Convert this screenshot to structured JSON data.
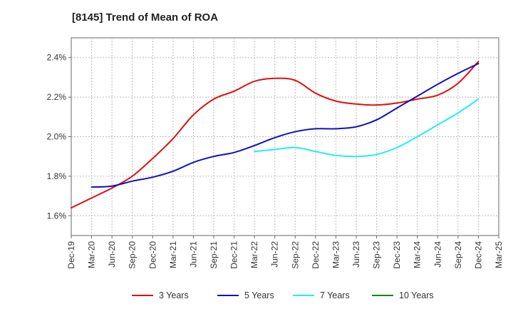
{
  "chart_data": {
    "type": "line",
    "title": "[8145]  Trend of Mean of ROA",
    "xlabel": "",
    "ylabel": "",
    "x_ticks": [
      "Dec-19",
      "Mar-20",
      "Jun-20",
      "Sep-20",
      "Dec-20",
      "Mar-21",
      "Jun-21",
      "Sep-21",
      "Dec-21",
      "Mar-22",
      "Jun-22",
      "Sep-22",
      "Dec-22",
      "Mar-23",
      "Jun-23",
      "Sep-23",
      "Dec-23",
      "Mar-24",
      "Jun-24",
      "Sep-24",
      "Dec-24",
      "Mar-25"
    ],
    "y_ticks": [
      "1.6%",
      "1.8%",
      "2.0%",
      "2.2%",
      "2.4%"
    ],
    "y_tick_values": [
      1.6,
      1.8,
      2.0,
      2.2,
      2.4
    ],
    "ylim": [
      1.5,
      2.5
    ],
    "grid": true,
    "legend_position": "bottom",
    "series": [
      {
        "name": "3 Years",
        "color": "#dd1111",
        "x": [
          "Dec-19",
          "Mar-20",
          "Jun-20",
          "Sep-20",
          "Dec-20",
          "Mar-21",
          "Jun-21",
          "Sep-21",
          "Dec-21",
          "Mar-22",
          "Jun-22",
          "Sep-22",
          "Dec-22",
          "Mar-23",
          "Jun-23",
          "Sep-23",
          "Dec-23",
          "Mar-24",
          "Jun-24",
          "Sep-24",
          "Dec-24"
        ],
        "values": [
          1.64,
          1.69,
          1.74,
          1.8,
          1.89,
          1.99,
          2.11,
          2.19,
          2.23,
          2.28,
          2.295,
          2.285,
          2.22,
          2.18,
          2.165,
          2.16,
          2.17,
          2.19,
          2.21,
          2.27,
          2.38
        ]
      },
      {
        "name": "5 Years",
        "color": "#1111bb",
        "x": [
          "Mar-20",
          "Jun-20",
          "Sep-20",
          "Dec-20",
          "Mar-21",
          "Jun-21",
          "Sep-21",
          "Dec-21",
          "Mar-22",
          "Jun-22",
          "Sep-22",
          "Dec-22",
          "Mar-23",
          "Jun-23",
          "Sep-23",
          "Dec-23",
          "Mar-24",
          "Jun-24",
          "Sep-24",
          "Dec-24"
        ],
        "values": [
          1.745,
          1.75,
          1.775,
          1.795,
          1.825,
          1.87,
          1.9,
          1.92,
          1.955,
          1.995,
          2.025,
          2.04,
          2.04,
          2.05,
          2.085,
          2.145,
          2.205,
          2.265,
          2.32,
          2.37
        ]
      },
      {
        "name": "7 Years",
        "color": "#22eeee",
        "x": [
          "Mar-22",
          "Jun-22",
          "Sep-22",
          "Dec-22",
          "Mar-23",
          "Jun-23",
          "Sep-23",
          "Dec-23",
          "Mar-24",
          "Jun-24",
          "Sep-24",
          "Dec-24"
        ],
        "values": [
          1.925,
          1.935,
          1.945,
          1.925,
          1.905,
          1.9,
          1.91,
          1.945,
          2.0,
          2.06,
          2.12,
          2.19
        ]
      },
      {
        "name": "10 Years",
        "color": "#118811",
        "x": [],
        "values": []
      }
    ]
  }
}
